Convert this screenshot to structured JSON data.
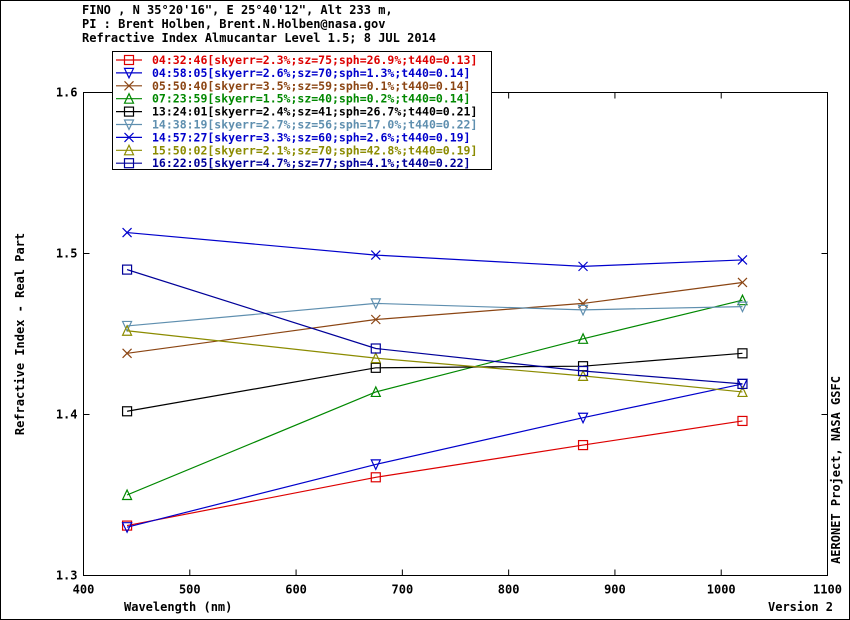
{
  "header": {
    "line1": "FINO , N 35°20'16\", E 25°40'12\", Alt 233 m,",
    "line2": "PI : Brent Holben, Brent.N.Holben@nasa.gov",
    "line3": "Refractive Index Almucantar Level 1.5; 8 JUL 2014"
  },
  "side_label": "AERONET Project, NASA GSFC",
  "version_label": "Version 2",
  "chart_data": {
    "type": "line",
    "xlabel": "Wavelength (nm)",
    "ylabel": "Refractive Index - Real Part",
    "xlim": [
      400,
      1100
    ],
    "ylim": [
      1.3,
      1.6
    ],
    "xticks": [
      400,
      500,
      600,
      700,
      800,
      900,
      1000,
      1100
    ],
    "yticks": [
      1.3,
      1.4,
      1.5,
      1.6
    ],
    "ytick_labels": [
      "1.3",
      "1.4",
      "1.5",
      "1.6"
    ],
    "grid": false,
    "legend_position": "top-left",
    "x": [
      441,
      675,
      870,
      1020
    ],
    "series": [
      {
        "name": "04:32:46[skyerr=2.3%;sz=75;sph=26.9%;t440=0.13]",
        "color": "#dd0000",
        "marker": "square",
        "values": [
          1.331,
          1.361,
          1.381,
          1.396
        ]
      },
      {
        "name": "04:58:05[skyerr=2.6%;sz=70;sph=1.3%;t440=0.14]",
        "color": "#0000cc",
        "marker": "triangle-down",
        "values": [
          1.33,
          1.369,
          1.398,
          1.419
        ]
      },
      {
        "name": "05:50:40[skyerr=3.5%;sz=59;sph=0.1%;t440=0.14]",
        "color": "#8b4513",
        "marker": "x",
        "values": [
          1.438,
          1.459,
          1.469,
          1.482
        ]
      },
      {
        "name": "07:23:59[skyerr=1.5%;sz=40;sph=0.2%;t440=0.14]",
        "color": "#008800",
        "marker": "triangle-up",
        "values": [
          1.35,
          1.414,
          1.447,
          1.471
        ]
      },
      {
        "name": "13:24:01[skyerr=2.4%;sz=41;sph=26.7%;t440=0.21]",
        "color": "#000000",
        "marker": "square",
        "values": [
          1.402,
          1.429,
          1.43,
          1.438
        ]
      },
      {
        "name": "14:38:19[skyerr=2.7%;sz=56;sph=17.0%;t440=0.22]",
        "color": "#5f8faf",
        "marker": "triangle-down",
        "values": [
          1.455,
          1.469,
          1.465,
          1.467
        ]
      },
      {
        "name": "14:57:27[skyerr=3.3%;sz=60;sph=2.6%;t440=0.19]",
        "color": "#0000cc",
        "marker": "x",
        "values": [
          1.513,
          1.499,
          1.492,
          1.496
        ]
      },
      {
        "name": "15:50:02[skyerr=2.1%;sz=70;sph=42.8%;t440=0.19]",
        "color": "#8b8b00",
        "marker": "triangle-up",
        "values": [
          1.452,
          1.435,
          1.424,
          1.414
        ]
      },
      {
        "name": "16:22:05[skyerr=4.7%;sz=77;sph=4.1%;t440=0.22]",
        "color": "#000099",
        "marker": "square",
        "values": [
          1.49,
          1.441,
          1.427,
          1.419
        ]
      }
    ]
  }
}
